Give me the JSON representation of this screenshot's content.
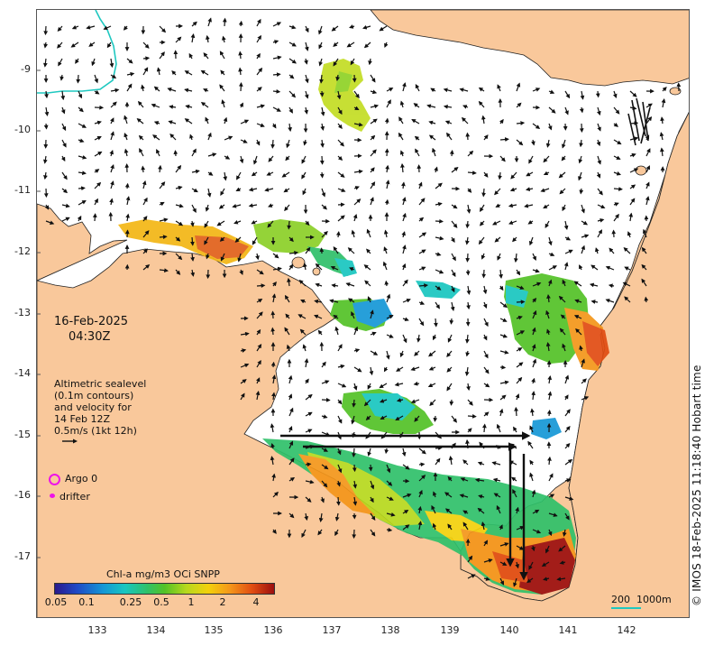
{
  "map": {
    "date": "16-Feb-2025",
    "time": "04:30Z",
    "altimetry_note": [
      "Altimetric sealevel",
      "(0.1m contours)",
      "and velocity for",
      "14 Feb 12Z",
      "0.5m/s (1kt 12h)"
    ],
    "legend": {
      "argo_label": "Argo 0",
      "drifter_label": "drifter"
    },
    "colorbar": {
      "title": "Chl-a mg/m3 OCi SNPP",
      "ticks": [
        "0.05",
        "0.1",
        "0.25",
        "0.5",
        "1",
        "2",
        "4"
      ]
    },
    "credit": "© IMOS 18-Feb-2025 11:18:40 Hobart time",
    "scalebar": {
      "label_a": "200",
      "label_b": "1000m"
    },
    "axes": {
      "x_ticks": [
        "133",
        "134",
        "135",
        "136",
        "137",
        "138",
        "139",
        "140",
        "141",
        "142"
      ],
      "y_ticks": [
        "9",
        "10",
        "11",
        "12",
        "13",
        "14",
        "15",
        "16",
        "17"
      ],
      "y_sign": "-"
    },
    "colors": {
      "land": "#f9c89b",
      "ocean": "#ffffff",
      "arrow": "#111111",
      "marker": "#ee14e8",
      "bathy": "#1fc8c0"
    }
  }
}
